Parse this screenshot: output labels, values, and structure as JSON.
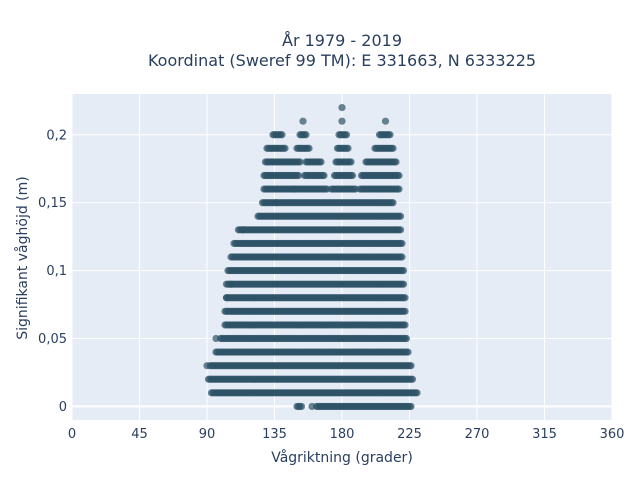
{
  "chart_data": {
    "type": "scatter",
    "title_line1": "År 1979 - 2019",
    "title_line2": "Koordinat (Sweref 99 TM): E 331663, N 6333225",
    "xlabel": "Vågriktning (grader)",
    "ylabel": "Signifikant våghöjd (m)",
    "xlim": [
      0,
      360
    ],
    "ylim": [
      -0.01,
      0.23
    ],
    "x_ticks": [
      0,
      45,
      90,
      135,
      180,
      225,
      270,
      315,
      360
    ],
    "x_tick_labels": [
      "0",
      "45",
      "90",
      "135",
      "180",
      "225",
      "270",
      "315",
      "360"
    ],
    "y_ticks": [
      0,
      0.05,
      0.1,
      0.15,
      0.2
    ],
    "y_tick_labels": [
      "0",
      "0,05",
      "0,1",
      "0,15",
      "0,2"
    ],
    "grid": true,
    "marker_color": "#2e5266",
    "plot_background": "#e5ecf6",
    "rows": [
      {
        "y": 0.22,
        "segments": [
          [
            180,
            180
          ]
        ]
      },
      {
        "y": 0.21,
        "segments": [
          [
            154,
            154
          ],
          [
            180,
            180
          ],
          [
            209,
            209
          ]
        ]
      },
      {
        "y": 0.2,
        "segments": [
          [
            134,
            140
          ],
          [
            152,
            156
          ],
          [
            178,
            183
          ],
          [
            205,
            212
          ]
        ]
      },
      {
        "y": 0.19,
        "segments": [
          [
            130,
            142
          ],
          [
            150,
            158
          ],
          [
            177,
            184
          ],
          [
            202,
            214
          ]
        ]
      },
      {
        "y": 0.18,
        "segments": [
          [
            129,
            152
          ],
          [
            156,
            166
          ],
          [
            176,
            186
          ],
          [
            196,
            216
          ]
        ]
      },
      {
        "y": 0.17,
        "segments": [
          [
            128,
            151
          ],
          [
            155,
            168
          ],
          [
            175,
            187
          ],
          [
            193,
            218
          ]
        ]
      },
      {
        "y": 0.16,
        "segments": [
          [
            128,
            170
          ],
          [
            173,
            189
          ],
          [
            192,
            218
          ]
        ]
      },
      {
        "y": 0.15,
        "segments": [
          [
            127,
            214
          ]
        ]
      },
      {
        "y": 0.14,
        "segments": [
          [
            124,
            219
          ]
        ]
      },
      {
        "y": 0.13,
        "segments": [
          [
            111,
            219
          ]
        ]
      },
      {
        "y": 0.12,
        "segments": [
          [
            108,
            220
          ]
        ]
      },
      {
        "y": 0.11,
        "segments": [
          [
            106,
            220
          ]
        ]
      },
      {
        "y": 0.1,
        "segments": [
          [
            104,
            221
          ]
        ]
      },
      {
        "y": 0.09,
        "segments": [
          [
            103,
            221
          ]
        ]
      },
      {
        "y": 0.08,
        "segments": [
          [
            103,
            222
          ]
        ]
      },
      {
        "y": 0.07,
        "segments": [
          [
            102,
            222
          ]
        ]
      },
      {
        "y": 0.06,
        "segments": [
          [
            102,
            222
          ]
        ]
      },
      {
        "y": 0.05,
        "segments": [
          [
            99,
            223
          ]
        ]
      },
      {
        "y": 0.04,
        "segments": [
          [
            96,
            224
          ]
        ]
      },
      {
        "y": 0.03,
        "segments": [
          [
            92,
            226
          ]
        ]
      },
      {
        "y": 0.02,
        "segments": [
          [
            91,
            227
          ]
        ]
      },
      {
        "y": 0.01,
        "segments": [
          [
            93,
            230
          ]
        ]
      },
      {
        "y": 0.0,
        "segments": [
          [
            150,
            153
          ],
          [
            163,
            226
          ]
        ]
      }
    ],
    "extra_points": [
      {
        "x": 114,
        "y": 0.13
      },
      {
        "x": 106,
        "y": 0.09
      },
      {
        "x": 103,
        "y": 0.08
      },
      {
        "x": 96,
        "y": 0.05
      },
      {
        "x": 90,
        "y": 0.03
      },
      {
        "x": 136,
        "y": 0.15
      },
      {
        "x": 148,
        "y": 0.16
      },
      {
        "x": 160,
        "y": 0.0
      }
    ]
  }
}
